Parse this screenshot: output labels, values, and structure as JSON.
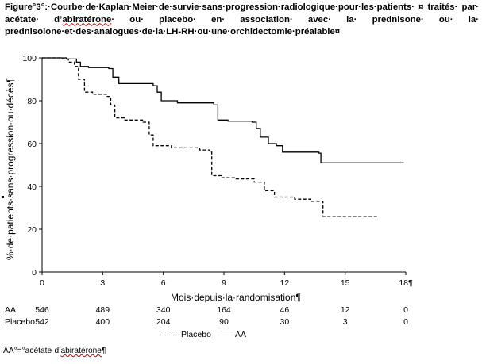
{
  "caption": {
    "part1": "Figure°3°:·Courbe·de·Kaplan·Meier·de·survie·sans·progression·radiologique·pour·les·patients· ¤ traités· par· acétate· d’",
    "part2": "abiratérone",
    "part3": "· ou· placebo· en· association· avec· la· prednisone· ou· la· prednisolone·et·des·analogues·de·la·LH-RH·ou·une·orchidectomie·préalable¤"
  },
  "chart_data": {
    "type": "line",
    "ylabel": "%·de·patients·sans·progression·ou·décès¶",
    "xlabel": "Mois·depuis·la·randomisation¶",
    "x_ticks": [
      "0",
      "3",
      "6",
      "9",
      "12",
      "15",
      "18"
    ],
    "x_tick_last_suffix": "¶",
    "y_ticks": [
      "0",
      "20",
      "40",
      "60",
      "80",
      "100"
    ],
    "xlim": [
      0,
      18
    ],
    "ylim": [
      0,
      100
    ],
    "series": [
      {
        "name": "Placebo",
        "style": "dashed",
        "color": "#000000",
        "points": [
          [
            0,
            100
          ],
          [
            0.9,
            99.5
          ],
          [
            1.3,
            98
          ],
          [
            1.6,
            96
          ],
          [
            1.8,
            90
          ],
          [
            2.1,
            84
          ],
          [
            2.5,
            83
          ],
          [
            3.2,
            82
          ],
          [
            3.4,
            78
          ],
          [
            3.6,
            72
          ],
          [
            4.1,
            71
          ],
          [
            5.0,
            70
          ],
          [
            5.3,
            64
          ],
          [
            5.5,
            59
          ],
          [
            6.4,
            58
          ],
          [
            7.8,
            57
          ],
          [
            8.3,
            56
          ],
          [
            8.4,
            45
          ],
          [
            8.9,
            44
          ],
          [
            9.6,
            43.5
          ],
          [
            10.5,
            42
          ],
          [
            11.0,
            38
          ],
          [
            11.5,
            35
          ],
          [
            12.5,
            34
          ],
          [
            13.3,
            33
          ],
          [
            13.9,
            26
          ],
          [
            16.6,
            26
          ]
        ]
      },
      {
        "name": "AA",
        "style": "solid",
        "color": "#000000",
        "points": [
          [
            0,
            100
          ],
          [
            1.2,
            99.5
          ],
          [
            1.7,
            98
          ],
          [
            1.9,
            96
          ],
          [
            2.3,
            95.5
          ],
          [
            3.3,
            95
          ],
          [
            3.5,
            91
          ],
          [
            3.8,
            88
          ],
          [
            5.5,
            87
          ],
          [
            5.7,
            84
          ],
          [
            5.9,
            80
          ],
          [
            6.7,
            79
          ],
          [
            8.5,
            78
          ],
          [
            8.7,
            71
          ],
          [
            9.2,
            70.5
          ],
          [
            10.4,
            70
          ],
          [
            10.6,
            67
          ],
          [
            10.8,
            63
          ],
          [
            11.2,
            60
          ],
          [
            11.6,
            59
          ],
          [
            11.9,
            56
          ],
          [
            13.7,
            55.5
          ],
          [
            13.8,
            51
          ],
          [
            17.9,
            51
          ]
        ]
      }
    ],
    "legend": [
      "Placebo",
      "AA"
    ],
    "legend_position": "bottom"
  },
  "risk_table": {
    "rows": [
      {
        "label": "AA",
        "values": [
          "546",
          "489",
          "340",
          "164",
          "46",
          "12",
          "0"
        ]
      },
      {
        "label": "Placebo",
        "values": [
          "542",
          "400",
          "204",
          "90",
          "30",
          "3",
          "0"
        ]
      }
    ]
  },
  "footnote": {
    "part1": "AA°=°acétate·d’",
    "part2": "abiratérone",
    "part3": "¶"
  }
}
